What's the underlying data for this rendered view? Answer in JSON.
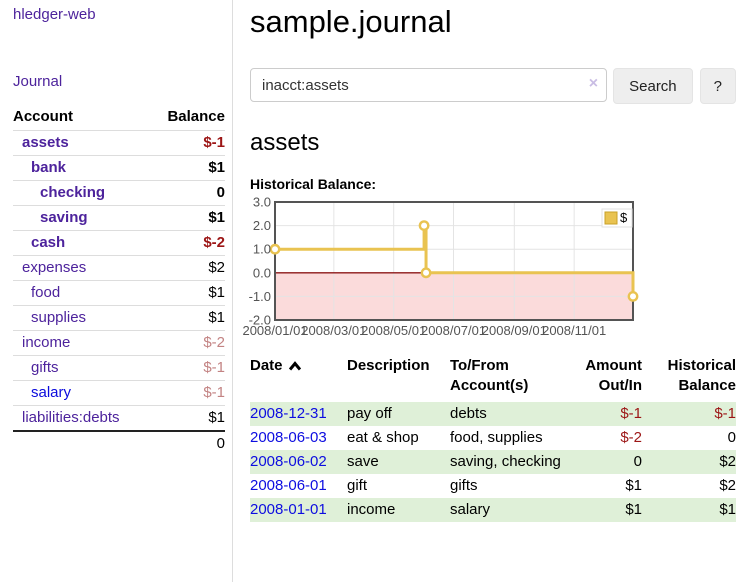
{
  "app": {
    "brand": "hledger-web"
  },
  "sidebar": {
    "nav": {
      "journal": "Journal"
    },
    "accounts_header": {
      "account": "Account",
      "balance": "Balance"
    },
    "accounts": [
      {
        "name": "assets",
        "balance": "$-1",
        "depth": 1,
        "bold": true,
        "link_color": "purple",
        "balance_tone": "neg"
      },
      {
        "name": "bank",
        "balance": "$1",
        "depth": 2,
        "bold": true,
        "link_color": "purple",
        "balance_tone": ""
      },
      {
        "name": "checking",
        "balance": "0",
        "depth": 3,
        "bold": true,
        "link_color": "purple",
        "balance_tone": ""
      },
      {
        "name": "saving",
        "balance": "$1",
        "depth": 3,
        "bold": true,
        "link_color": "purple",
        "balance_tone": ""
      },
      {
        "name": "cash",
        "balance": "$-2",
        "depth": 2,
        "bold": true,
        "link_color": "purple",
        "balance_tone": "neg"
      },
      {
        "name": "expenses",
        "balance": "$2",
        "depth": 1,
        "bold": false,
        "link_color": "purple",
        "balance_tone": ""
      },
      {
        "name": "food",
        "balance": "$1",
        "depth": 2,
        "bold": false,
        "link_color": "purple",
        "balance_tone": ""
      },
      {
        "name": "supplies",
        "balance": "$1",
        "depth": 2,
        "bold": false,
        "link_color": "purple",
        "balance_tone": ""
      },
      {
        "name": "income",
        "balance": "$-2",
        "depth": 1,
        "bold": false,
        "link_color": "purple",
        "balance_tone": "negsoft"
      },
      {
        "name": "gifts",
        "balance": "$-1",
        "depth": 2,
        "bold": false,
        "link_color": "purple",
        "balance_tone": "negsoft"
      },
      {
        "name": "salary",
        "balance": "$-1",
        "depth": 2,
        "bold": false,
        "link_color": "blue",
        "balance_tone": "negsoft"
      },
      {
        "name": "liabilities:debts",
        "balance": "$1",
        "depth": 1,
        "bold": false,
        "link_color": "purple",
        "balance_tone": ""
      }
    ],
    "total": "0"
  },
  "header": {
    "title": "sample.journal"
  },
  "search": {
    "query": "inacct:assets",
    "clear_icon": "×",
    "button_label": "Search",
    "help_label": "?"
  },
  "account_page": {
    "title": "assets",
    "chart_heading": "Historical Balance:"
  },
  "chart_data": {
    "type": "line",
    "step": true,
    "series": [
      {
        "name": "$",
        "color": "#e9c351",
        "points": [
          [
            "2008-01-01",
            1
          ],
          [
            "2008-06-01",
            2
          ],
          [
            "2008-06-03",
            0
          ],
          [
            "2008-12-31",
            -1
          ]
        ]
      }
    ],
    "x_range": [
      "2008-01-01",
      "2008-12-31"
    ],
    "ylim": [
      -2,
      3
    ],
    "y_ticks": [
      {
        "value": 3,
        "label": "3.0"
      },
      {
        "value": 2,
        "label": "2.0"
      },
      {
        "value": 1,
        "label": "1.0"
      },
      {
        "value": 0,
        "label": "0.0"
      },
      {
        "value": -1,
        "label": "-1.0"
      },
      {
        "value": -2,
        "label": "-2.0"
      }
    ],
    "x_ticks": [
      {
        "date": "2008-01-01",
        "label": "2008/01/01"
      },
      {
        "date": "2008-03-01",
        "label": "2008/03/01"
      },
      {
        "date": "2008-05-01",
        "label": "2008/05/01"
      },
      {
        "date": "2008-07-01",
        "label": "2008/07/01"
      },
      {
        "date": "2008-09-01",
        "label": "2008/09/01"
      },
      {
        "date": "2008-11-01",
        "label": "2008/11/01"
      }
    ],
    "legend": {
      "label": "$",
      "position": "top-right"
    },
    "grid": true,
    "grid_color": "#e4e4e4",
    "border_color": "#545454",
    "negative_region_color": "#fbdbdb",
    "zero_line_color": "#8c1717"
  },
  "register": {
    "columns": [
      {
        "label": "Date"
      },
      {
        "label": "Description"
      },
      {
        "label": "To/From Account(s)"
      },
      {
        "label": "Amount Out/In"
      },
      {
        "label": "Historical Balance"
      }
    ],
    "rows": [
      {
        "date": "2008-12-31",
        "description": "pay off",
        "accounts": "debts",
        "amount": "$-1",
        "amount_negative": true,
        "balance": "$-1",
        "balance_negative": true
      },
      {
        "date": "2008-06-03",
        "description": "eat & shop",
        "accounts": "food, supplies",
        "amount": "$-2",
        "amount_negative": true,
        "balance": "0",
        "balance_negative": false
      },
      {
        "date": "2008-06-02",
        "description": "save",
        "accounts": "saving, checking",
        "amount": "0",
        "amount_negative": false,
        "balance": "$2",
        "balance_negative": false
      },
      {
        "date": "2008-06-01",
        "description": "gift",
        "accounts": "gifts",
        "amount": "$1",
        "amount_negative": false,
        "balance": "$2",
        "balance_negative": false
      },
      {
        "date": "2008-01-01",
        "description": "income",
        "accounts": "salary",
        "amount": "$1",
        "amount_negative": false,
        "balance": "$1",
        "balance_negative": false
      }
    ]
  }
}
